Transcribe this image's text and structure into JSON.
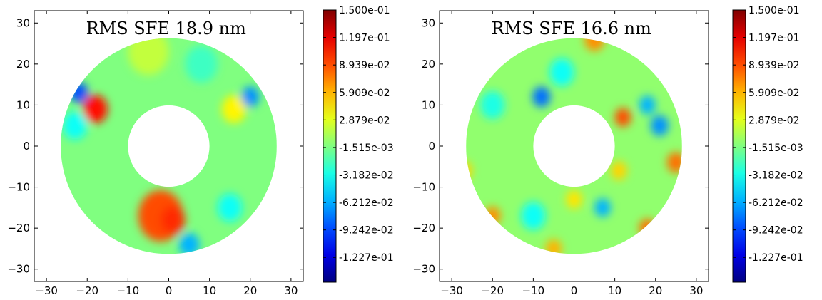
{
  "chart_data": [
    {
      "type": "heatmap",
      "title": "RMS SFE 18.9 nm",
      "xlim": [
        -33,
        33
      ],
      "ylim": [
        -33,
        33
      ],
      "xticks": [
        -30,
        -20,
        -10,
        0,
        10,
        20,
        30
      ],
      "yticks": [
        -30,
        -20,
        -10,
        0,
        10,
        20,
        30
      ],
      "annulus": {
        "outer_radius": 26.5,
        "inner_radius": 10
      },
      "colorbar": {
        "min": -0.15,
        "max": 0.15,
        "tick_values": [
          0.15,
          0.1197,
          0.08939,
          0.05909,
          0.02879,
          -0.001515,
          -0.03182,
          -0.06212,
          -0.09242,
          -0.1227
        ],
        "tick_labels": [
          "1.500e-01",
          "1.197e-01",
          "8.939e-02",
          "5.909e-02",
          "2.879e-02",
          "-1.515e-03",
          "-3.182e-02",
          "-6.212e-02",
          "-9.242e-02",
          "-1.227e-01"
        ]
      },
      "background_value": 0.0,
      "features": [
        {
          "x": -18,
          "y": 9,
          "value": 0.11,
          "size": 3
        },
        {
          "x": -22,
          "y": 13,
          "value": -0.09,
          "size": 2.2
        },
        {
          "x": -2,
          "y": -17,
          "value": 0.09,
          "size": 5.5
        },
        {
          "x": 1,
          "y": -18,
          "value": 0.1,
          "size": 3
        },
        {
          "x": 16,
          "y": 9,
          "value": 0.04,
          "size": 3
        },
        {
          "x": 20,
          "y": 12,
          "value": -0.07,
          "size": 2.2
        },
        {
          "x": 15,
          "y": -15,
          "value": -0.035,
          "size": 3
        },
        {
          "x": 5,
          "y": -24,
          "value": -0.06,
          "size": 2.5
        },
        {
          "x": -5,
          "y": 23,
          "value": 0.02,
          "size": 5
        },
        {
          "x": -23,
          "y": 5,
          "value": -0.035,
          "size": 3
        },
        {
          "x": 8,
          "y": 20,
          "value": -0.02,
          "size": 4
        }
      ]
    },
    {
      "type": "heatmap",
      "title": "RMS SFE 16.6 nm",
      "xlim": [
        -33,
        33
      ],
      "ylim": [
        -33,
        33
      ],
      "xticks": [
        -30,
        -20,
        -10,
        0,
        10,
        20,
        30
      ],
      "yticks": [
        -30,
        -20,
        -10,
        0,
        10,
        20,
        30
      ],
      "annulus": {
        "outer_radius": 26.5,
        "inner_radius": 10
      },
      "colorbar": {
        "min": -0.15,
        "max": 0.15,
        "tick_values": [
          0.15,
          0.1197,
          0.08939,
          0.05909,
          0.02879,
          -0.001515,
          -0.03182,
          -0.06212,
          -0.09242,
          -0.1227
        ],
        "tick_labels": [
          "1.500e-01",
          "1.197e-01",
          "8.939e-02",
          "5.909e-02",
          "2.879e-02",
          "-1.515e-03",
          "-3.182e-02",
          "-6.212e-02",
          "-9.242e-02",
          "-1.227e-01"
        ]
      },
      "background_value": 0.005,
      "features": [
        {
          "x": -8,
          "y": 12,
          "value": -0.08,
          "size": 2.2
        },
        {
          "x": 12,
          "y": 7,
          "value": 0.09,
          "size": 2
        },
        {
          "x": 18,
          "y": 10,
          "value": -0.06,
          "size": 2
        },
        {
          "x": 21,
          "y": 5,
          "value": -0.07,
          "size": 2.2
        },
        {
          "x": 25,
          "y": -4,
          "value": 0.08,
          "size": 2.2
        },
        {
          "x": 5,
          "y": 26,
          "value": 0.07,
          "size": 2.5
        },
        {
          "x": 18,
          "y": -20,
          "value": 0.08,
          "size": 2
        },
        {
          "x": -20,
          "y": -17,
          "value": 0.07,
          "size": 2
        },
        {
          "x": -27,
          "y": -6,
          "value": 0.05,
          "size": 2
        },
        {
          "x": 11,
          "y": -6,
          "value": 0.05,
          "size": 2
        },
        {
          "x": 0,
          "y": -13,
          "value": 0.045,
          "size": 2
        },
        {
          "x": -5,
          "y": -25,
          "value": 0.06,
          "size": 2
        },
        {
          "x": 7,
          "y": -15,
          "value": -0.06,
          "size": 2
        },
        {
          "x": -3,
          "y": 18,
          "value": -0.035,
          "size": 3
        },
        {
          "x": -10,
          "y": -17,
          "value": -0.035,
          "size": 3
        },
        {
          "x": -20,
          "y": 10,
          "value": -0.03,
          "size": 3
        }
      ]
    }
  ]
}
